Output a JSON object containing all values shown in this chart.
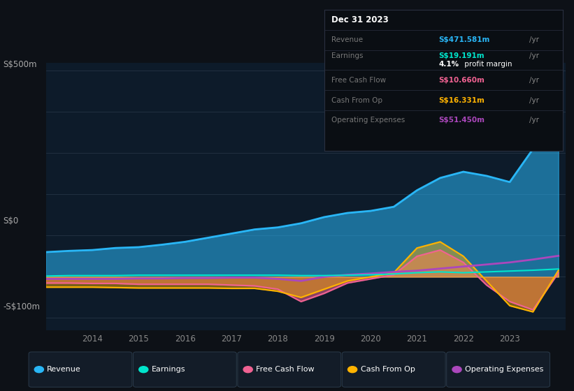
{
  "bg_color": "#0d1117",
  "plot_bg_color": "#0d1b2a",
  "grid_color": "#2a3a4a",
  "years": [
    2013.0,
    2013.5,
    2014.0,
    2014.5,
    2015.0,
    2015.5,
    2016.0,
    2016.5,
    2017.0,
    2017.5,
    2018.0,
    2018.5,
    2019.0,
    2019.5,
    2020.0,
    2020.5,
    2021.0,
    2021.5,
    2022.0,
    2022.5,
    2023.0,
    2023.5,
    2024.05
  ],
  "revenue": [
    60,
    63,
    65,
    70,
    72,
    78,
    85,
    95,
    105,
    115,
    120,
    130,
    145,
    155,
    160,
    170,
    210,
    240,
    255,
    245,
    230,
    310,
    471
  ],
  "earnings": [
    2,
    3,
    3,
    3,
    4,
    4,
    4,
    4,
    4,
    4,
    4,
    3,
    3,
    4,
    5,
    7,
    10,
    12,
    10,
    12,
    14,
    16,
    19
  ],
  "free_cash_flow": [
    -15,
    -15,
    -16,
    -16,
    -18,
    -18,
    -18,
    -18,
    -20,
    -22,
    -30,
    -60,
    -40,
    -15,
    -5,
    5,
    50,
    65,
    35,
    -20,
    -60,
    -80,
    10
  ],
  "cash_from_op": [
    -25,
    -25,
    -25,
    -26,
    -27,
    -27,
    -27,
    -27,
    -28,
    -28,
    -35,
    -50,
    -30,
    -10,
    0,
    10,
    70,
    85,
    50,
    -10,
    -70,
    -85,
    16
  ],
  "operating_exp": [
    -5,
    -5,
    -5,
    -5,
    -4,
    -4,
    -3,
    -3,
    -2,
    -2,
    -5,
    -10,
    0,
    5,
    8,
    12,
    15,
    20,
    25,
    30,
    35,
    42,
    51
  ],
  "revenue_color": "#29b6f6",
  "earnings_color": "#00e5cc",
  "fcf_color": "#f06292",
  "cfo_color": "#ffb300",
  "opex_color": "#ab47bc",
  "ylim": [
    -130,
    520
  ],
  "xlim": [
    2013.0,
    2024.2
  ],
  "yticks": [
    0,
    500
  ],
  "xtick_years": [
    2014,
    2015,
    2016,
    2017,
    2018,
    2019,
    2020,
    2021,
    2022,
    2023
  ],
  "ylabel_s500": "S$500m",
  "ylabel_s0": "S$0",
  "ylabel_sm100": "-S$100m",
  "y_s500": 500,
  "y_s0": 0,
  "y_sm100": -100,
  "info_box": {
    "date": "Dec 31 2023",
    "revenue_label": "Revenue",
    "revenue_value": "S$471.581m",
    "earnings_label": "Earnings",
    "earnings_value": "S$19.191m",
    "profit_margin": "4.1%",
    "fcf_label": "Free Cash Flow",
    "fcf_value": "S$10.660m",
    "cfo_label": "Cash From Op",
    "cfo_value": "S$16.331m",
    "opex_label": "Operating Expenses",
    "opex_value": "S$51.450m"
  },
  "legend": [
    {
      "label": "Revenue",
      "color": "#29b6f6"
    },
    {
      "label": "Earnings",
      "color": "#00e5cc"
    },
    {
      "label": "Free Cash Flow",
      "color": "#f06292"
    },
    {
      "label": "Cash From Op",
      "color": "#ffb300"
    },
    {
      "label": "Operating Expenses",
      "color": "#ab47bc"
    }
  ]
}
